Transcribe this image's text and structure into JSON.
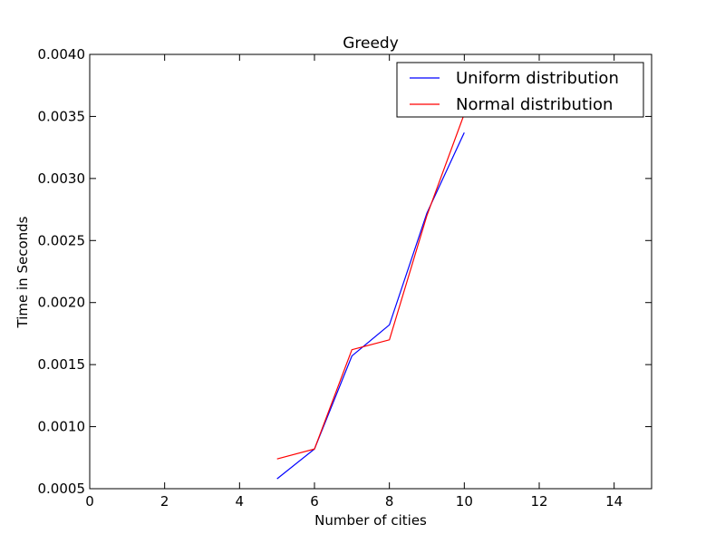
{
  "chart_data": {
    "type": "line",
    "title": "Greedy",
    "xlabel": "Number of cities",
    "ylabel": "Time in Seconds",
    "xlim": [
      0,
      15
    ],
    "ylim": [
      0.0005,
      0.004
    ],
    "xticks": [
      0,
      2,
      4,
      6,
      8,
      10,
      12,
      14
    ],
    "xtick_labels": [
      "0",
      "2",
      "4",
      "6",
      "8",
      "10",
      "12",
      "14"
    ],
    "yticks": [
      0.0005,
      0.001,
      0.0015,
      0.002,
      0.0025,
      0.003,
      0.0035,
      0.004
    ],
    "ytick_labels": [
      "0.0005",
      "0.0010",
      "0.0015",
      "0.0020",
      "0.0025",
      "0.0030",
      "0.0035",
      "0.0040"
    ],
    "grid": false,
    "legend_position": "top-right",
    "series": [
      {
        "name": "Uniform distribution",
        "color": "#0000ff",
        "x": [
          5,
          6,
          7,
          8,
          9,
          10
        ],
        "y": [
          0.00058,
          0.00082,
          0.00157,
          0.00182,
          0.00272,
          0.00337
        ]
      },
      {
        "name": "Normal distribution",
        "color": "#ff0000",
        "x": [
          5,
          6,
          7,
          8,
          9,
          10
        ],
        "y": [
          0.00074,
          0.00082,
          0.00162,
          0.0017,
          0.0027,
          0.00352
        ]
      }
    ]
  }
}
